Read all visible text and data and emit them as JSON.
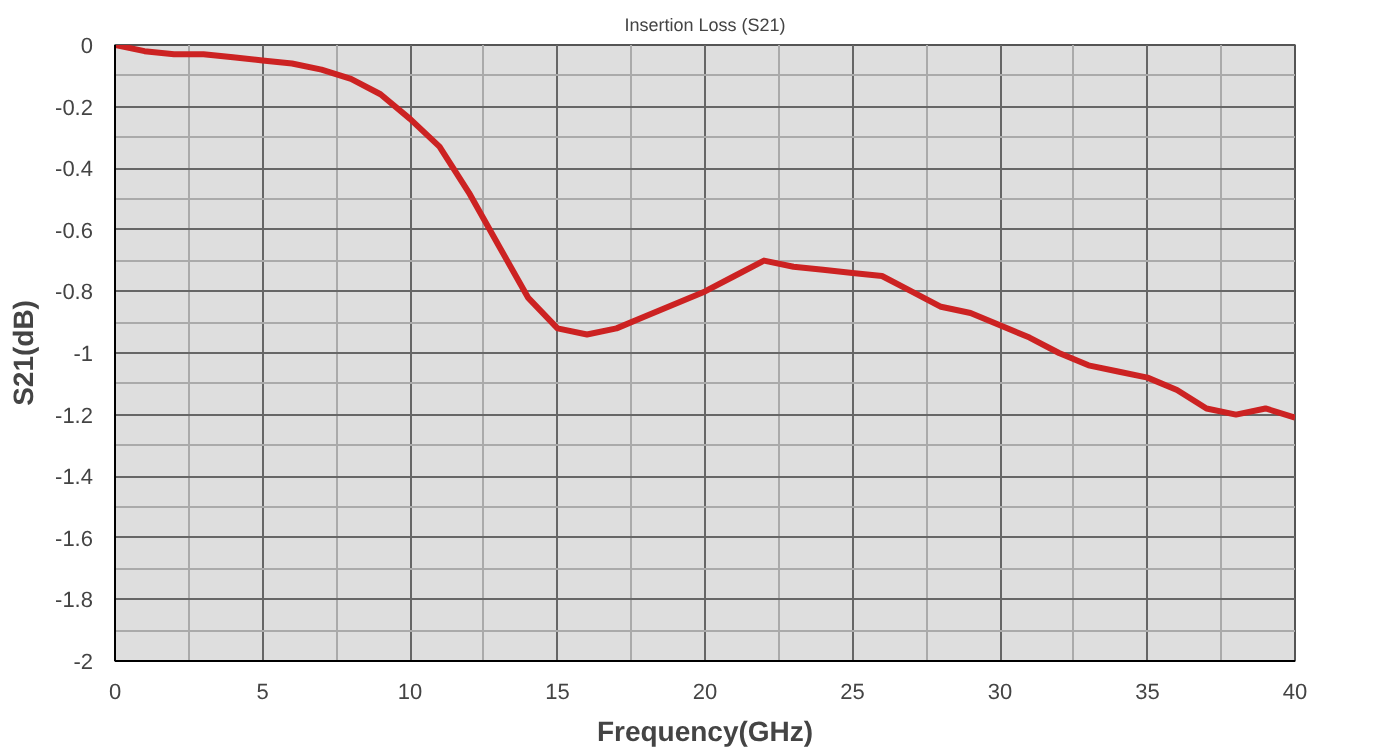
{
  "chart_data": {
    "type": "line",
    "title": "Insertion Loss (S21)",
    "xlabel": "Frequency(GHz)",
    "ylabel": "S21(dB)",
    "x": [
      0,
      1,
      2,
      3,
      4,
      5,
      6,
      7,
      8,
      9,
      10,
      11,
      12,
      13,
      14,
      15,
      16,
      17,
      18,
      19,
      20,
      21,
      22,
      23,
      24,
      25,
      26,
      27,
      28,
      29,
      30,
      31,
      32,
      33,
      34,
      35,
      36,
      37,
      38,
      39,
      40
    ],
    "series": [
      {
        "color": "#cc2222",
        "values": [
          0,
          -0.02,
          -0.03,
          -0.03,
          -0.04,
          -0.05,
          -0.06,
          -0.08,
          -0.11,
          -0.16,
          -0.24,
          -0.33,
          -0.48,
          -0.65,
          -0.82,
          -0.92,
          -0.94,
          -0.92,
          -0.88,
          -0.84,
          -0.8,
          -0.75,
          -0.7,
          -0.72,
          -0.73,
          -0.74,
          -0.75,
          -0.8,
          -0.85,
          -0.87,
          -0.91,
          -0.95,
          -1,
          -1.04,
          -1.06,
          -1.08,
          -1.12,
          -1.18,
          -1.2,
          -1.18,
          -1.21
        ]
      }
    ],
    "xlim": [
      0,
      40
    ],
    "ylim": [
      -2,
      0
    ],
    "xticks": [
      0,
      5,
      10,
      15,
      20,
      25,
      30,
      35,
      40
    ],
    "yticks": [
      -2,
      -1.8,
      -1.6,
      -1.4,
      -1.2,
      -1,
      -0.8,
      -0.6,
      -0.4,
      -0.2,
      0
    ],
    "grid": true,
    "marker": "none",
    "line_style": "solid"
  }
}
